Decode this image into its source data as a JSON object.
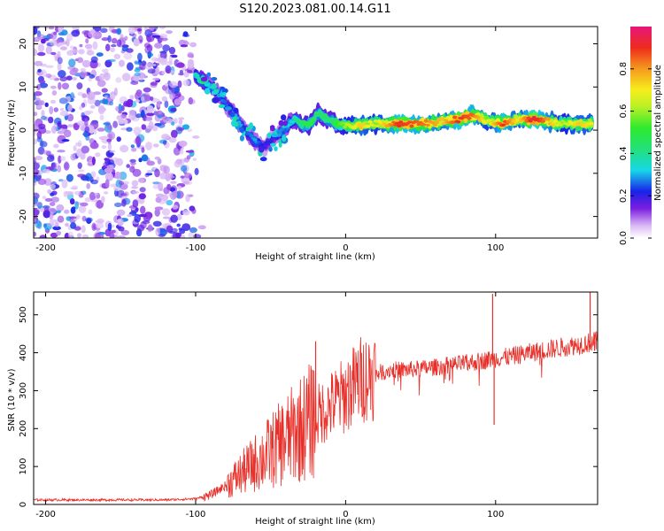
{
  "title": "S120.2023.081.00.14.G11",
  "chart_data": [
    {
      "type": "heatmap",
      "xlabel": "Height of straight line (km)",
      "ylabel": "Frequency (Hz)",
      "xlim": [
        -208,
        168
      ],
      "ylim": [
        -25,
        24
      ],
      "xticks": [
        -200,
        -100,
        0,
        100
      ],
      "xtick_labels": [
        "-200",
        "-100",
        "0",
        "100"
      ],
      "yticks": [
        -20,
        -10,
        0,
        10,
        20
      ],
      "ytick_labels": [
        "-20",
        "-10",
        "0",
        "10",
        "20"
      ],
      "colorbar": {
        "label": "Normalized spectral amplitude",
        "range": [
          0,
          1
        ],
        "ticks": [
          0,
          0.2,
          0.4,
          0.6,
          0.8
        ],
        "tick_labels": [
          "0.0",
          "0.2",
          "0.4",
          "0.6",
          "0.8"
        ]
      },
      "signal_track": [
        {
          "x": -100,
          "freq": 12.5,
          "amp": 0.35
        },
        {
          "x": -95,
          "freq": 11.5,
          "amp": 0.45
        },
        {
          "x": -90,
          "freq": 10.5,
          "amp": 0.3
        },
        {
          "x": -85,
          "freq": 8.5,
          "amp": 0.3
        },
        {
          "x": -80,
          "freq": 6.0,
          "amp": 0.25
        },
        {
          "x": -75,
          "freq": 4.0,
          "amp": 0.3
        },
        {
          "x": -70,
          "freq": 1.5,
          "amp": 0.3
        },
        {
          "x": -65,
          "freq": -1.0,
          "amp": 0.25
        },
        {
          "x": -60,
          "freq": -2.5,
          "amp": 0.3
        },
        {
          "x": -55,
          "freq": -4.0,
          "amp": 0.2
        },
        {
          "x": -50,
          "freq": -2.5,
          "amp": 0.2
        },
        {
          "x": -45,
          "freq": -1.0,
          "amp": 0.25
        },
        {
          "x": -40,
          "freq": 0.5,
          "amp": 0.3
        },
        {
          "x": -35,
          "freq": 2.5,
          "amp": 0.35
        },
        {
          "x": -30,
          "freq": 1.5,
          "amp": 0.45
        },
        {
          "x": -25,
          "freq": 1.0,
          "amp": 0.5
        },
        {
          "x": -18,
          "freq": 4.0,
          "amp": 0.45
        },
        {
          "x": -10,
          "freq": 2.0,
          "amp": 0.45
        },
        {
          "x": 0,
          "freq": 1.0,
          "amp": 0.6
        },
        {
          "x": 10,
          "freq": 1.0,
          "amp": 0.75
        },
        {
          "x": 20,
          "freq": 1.5,
          "amp": 0.65
        },
        {
          "x": 35,
          "freq": 1.5,
          "amp": 0.9
        },
        {
          "x": 50,
          "freq": 1.5,
          "amp": 0.85
        },
        {
          "x": 65,
          "freq": 2.0,
          "amp": 0.75
        },
        {
          "x": 75,
          "freq": 2.5,
          "amp": 0.9
        },
        {
          "x": 85,
          "freq": 3.5,
          "amp": 0.85
        },
        {
          "x": 95,
          "freq": 2.0,
          "amp": 0.65
        },
        {
          "x": 105,
          "freq": 1.5,
          "amp": 0.9
        },
        {
          "x": 115,
          "freq": 2.5,
          "amp": 0.7
        },
        {
          "x": 125,
          "freq": 2.5,
          "amp": 0.95
        },
        {
          "x": 135,
          "freq": 2.0,
          "amp": 0.8
        },
        {
          "x": 145,
          "freq": 1.5,
          "amp": 0.6
        },
        {
          "x": 155,
          "freq": 1.5,
          "amp": 0.75
        },
        {
          "x": 165,
          "freq": 1.5,
          "amp": 0.7
        }
      ],
      "noise_region": {
        "x_from": -208,
        "x_to": -95,
        "amp_range": [
          0.05,
          0.3
        ]
      }
    },
    {
      "type": "line",
      "xlabel": "Height of straight line (km)",
      "ylabel": "SNR (10 * v/v)",
      "xlim": [
        -208,
        168
      ],
      "ylim": [
        0,
        560
      ],
      "xticks": [
        -200,
        -100,
        0,
        100
      ],
      "xtick_labels": [
        "-200",
        "-100",
        "0",
        "100"
      ],
      "yticks": [
        0,
        100,
        200,
        300,
        400,
        500
      ],
      "ytick_labels": [
        "0",
        "100",
        "200",
        "300",
        "400",
        "500"
      ],
      "color": "#e8302a",
      "series": [
        {
          "x": [
            -208,
            -180,
            -150,
            -120,
            -100,
            -90,
            -80,
            -70,
            -60,
            -50,
            -40,
            -30,
            -20,
            -10,
            0,
            10,
            20,
            30,
            40,
            50,
            60,
            70,
            80,
            90,
            100,
            110,
            120,
            130,
            140,
            150,
            160,
            168
          ],
          "values": [
            12,
            12,
            12,
            12,
            15,
            25,
            50,
            80,
            110,
            140,
            170,
            200,
            230,
            260,
            290,
            330,
            345,
            355,
            355,
            358,
            362,
            368,
            372,
            378,
            385,
            390,
            398,
            405,
            412,
            418,
            425,
            430
          ]
        }
      ],
      "spikes": [
        {
          "x": -60,
          "value": 140
        },
        {
          "x": -20,
          "value": 430
        },
        {
          "x": -22,
          "value": 355
        },
        {
          "x": 99,
          "value": 210
        },
        {
          "x": 98,
          "value": 555
        },
        {
          "x": 163,
          "value": 560
        },
        {
          "x": 166,
          "value": 405
        }
      ]
    }
  ]
}
